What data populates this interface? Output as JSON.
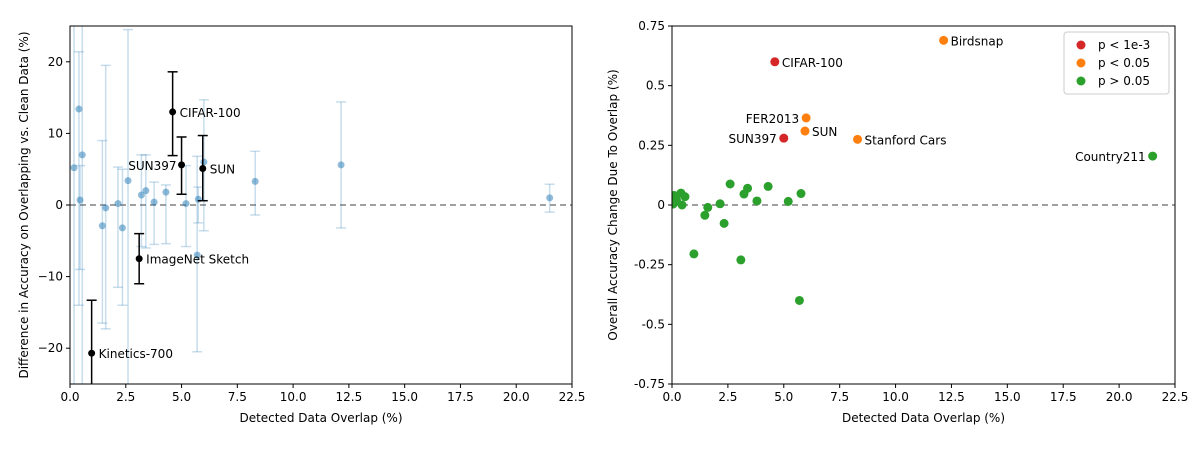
{
  "chart_data": [
    {
      "type": "scatter",
      "xlabel": "Detected Data Overlap (%)",
      "ylabel": "Difference in Accuracy on Overlapping vs. Clean Data (%)",
      "xlim": [
        0,
        22.5
      ],
      "ylim": [
        -25,
        25
      ],
      "xticks": [
        "0.0",
        "2.5",
        "5.0",
        "7.5",
        "10.0",
        "12.5",
        "15.0",
        "17.5",
        "20.0",
        "22.5"
      ],
      "yticks": [
        {
          "v": 20,
          "label": "20"
        },
        {
          "v": 10,
          "label": "10"
        },
        {
          "v": 0,
          "label": "0"
        },
        {
          "v": -10,
          "label": "−10"
        },
        {
          "v": -20,
          "label": "−20"
        }
      ],
      "reference_line_y": 0,
      "color_faded": "#1f77b4",
      "color_highlight": "#000000",
      "points": [
        {
          "x": 0.18,
          "y": 5.2,
          "lo": -30,
          "hi": 35
        },
        {
          "x": 0.4,
          "y": 13.4,
          "lo": -14,
          "hi": 21.4
        },
        {
          "x": 0.45,
          "y": 0.7,
          "lo": -9,
          "hi": 5.5
        },
        {
          "x": 0.55,
          "y": 7.0,
          "lo": -30,
          "hi": 35
        },
        {
          "x": 1.45,
          "y": -2.9,
          "lo": -16.5,
          "hi": 9
        },
        {
          "x": 1.6,
          "y": -0.4,
          "lo": -17.3,
          "hi": 19.5
        },
        {
          "x": 2.15,
          "y": 0.2,
          "lo": -11.5,
          "hi": 5.3
        },
        {
          "x": 2.35,
          "y": -3.2,
          "lo": -14,
          "hi": 5
        },
        {
          "x": 2.6,
          "y": 3.4,
          "lo": -30,
          "hi": 24.5
        },
        {
          "x": 3.2,
          "y": 1.4,
          "lo": -5.8,
          "hi": 7
        },
        {
          "x": 3.4,
          "y": 2.0,
          "lo": -6,
          "hi": 7
        },
        {
          "x": 3.77,
          "y": 0.4,
          "lo": -5.5,
          "hi": 3.2
        },
        {
          "x": 4.3,
          "y": 1.8,
          "lo": -5.4,
          "hi": 2.8
        },
        {
          "x": 5.2,
          "y": 0.2,
          "lo": -5.8,
          "hi": 5.5
        },
        {
          "x": 5.7,
          "y": -7.0,
          "lo": -20.5,
          "hi": 6.8
        },
        {
          "x": 5.75,
          "y": 0.8,
          "lo": -2.5,
          "hi": 2.5
        },
        {
          "x": 6.0,
          "y": 6.0,
          "lo": -3.6,
          "hi": 14.7
        },
        {
          "x": 8.3,
          "y": 3.3,
          "lo": -1.4,
          "hi": 7.5
        },
        {
          "x": 12.15,
          "y": 5.6,
          "lo": -3.2,
          "hi": 14.4
        },
        {
          "x": 21.5,
          "y": 1.0,
          "lo": -1,
          "hi": 2.9
        }
      ],
      "highlighted": [
        {
          "name": "CIFAR-100",
          "x": 4.6,
          "y": 13.0,
          "lo": 6.9,
          "hi": 18.6,
          "anchor": "start"
        },
        {
          "name": "SUN397",
          "x": 5.0,
          "y": 5.6,
          "lo": 1.5,
          "hi": 9.5,
          "anchor": "end"
        },
        {
          "name": "SUN",
          "x": 5.95,
          "y": 5.1,
          "lo": 0.6,
          "hi": 9.7,
          "anchor": "start"
        },
        {
          "name": "ImageNet Sketch",
          "x": 3.1,
          "y": -7.5,
          "lo": -11,
          "hi": -4,
          "anchor": "start"
        },
        {
          "name": "Kinetics-700",
          "x": 0.97,
          "y": -20.7,
          "lo": -30,
          "hi": -13.3,
          "anchor": "start"
        }
      ]
    },
    {
      "type": "scatter",
      "xlabel": "Detected Data Overlap (%)",
      "ylabel": "Overall Accuracy Change Due To Overlap (%)",
      "xlim": [
        0,
        22.5
      ],
      "ylim": [
        -0.75,
        0.75
      ],
      "xticks": [
        "0.0",
        "2.5",
        "5.0",
        "7.5",
        "10.0",
        "12.5",
        "15.0",
        "17.5",
        "20.0",
        "22.5"
      ],
      "yticks": [
        {
          "v": 0.75,
          "label": "0.75"
        },
        {
          "v": 0.5,
          "label": "0.5"
        },
        {
          "v": 0.25,
          "label": "0.25"
        },
        {
          "v": 0,
          "label": "0"
        },
        {
          "v": -0.25,
          "label": "-0.25"
        },
        {
          "v": -0.5,
          "label": "-0.5"
        },
        {
          "v": -0.75,
          "label": "-0.75"
        }
      ],
      "reference_line_y": 0,
      "legend": {
        "placement": "top-right",
        "entries": [
          {
            "label": "p < 1e-3",
            "color": "#d62728"
          },
          {
            "label": "p < 0.05",
            "color": "#ff7f0e"
          },
          {
            "label": "p > 0.05",
            "color": "#2ca02c"
          }
        ]
      },
      "points": [
        {
          "x": 0.05,
          "y": 0.004,
          "g": 2
        },
        {
          "x": 0.1,
          "y": 0.04,
          "g": 2
        },
        {
          "x": 0.2,
          "y": 0.02,
          "g": 2
        },
        {
          "x": 0.4,
          "y": 0.05,
          "g": 2
        },
        {
          "x": 0.45,
          "y": 0.0,
          "g": 2
        },
        {
          "x": 0.58,
          "y": 0.035,
          "g": 2
        },
        {
          "x": 0.98,
          "y": -0.205,
          "g": 2
        },
        {
          "x": 1.47,
          "y": -0.043,
          "g": 2
        },
        {
          "x": 1.6,
          "y": -0.01,
          "g": 2
        },
        {
          "x": 2.15,
          "y": 0.005,
          "g": 2
        },
        {
          "x": 2.33,
          "y": -0.077,
          "g": 2
        },
        {
          "x": 2.6,
          "y": 0.088,
          "g": 2
        },
        {
          "x": 3.08,
          "y": -0.23,
          "g": 2
        },
        {
          "x": 3.22,
          "y": 0.046,
          "g": 2
        },
        {
          "x": 3.38,
          "y": 0.07,
          "g": 2
        },
        {
          "x": 3.8,
          "y": 0.017,
          "g": 2
        },
        {
          "x": 4.3,
          "y": 0.078,
          "g": 2
        },
        {
          "x": 5.2,
          "y": 0.015,
          "g": 2
        },
        {
          "x": 5.7,
          "y": -0.4,
          "g": 2
        },
        {
          "x": 5.77,
          "y": 0.048,
          "g": 2
        },
        {
          "x": 4.6,
          "y": 0.6,
          "g": 0,
          "name": "CIFAR-100",
          "anchor": "start"
        },
        {
          "x": 5.0,
          "y": 0.28,
          "g": 0,
          "name": "SUN397",
          "anchor": "end"
        },
        {
          "x": 6.0,
          "y": 0.365,
          "g": 1,
          "name": "FER2013",
          "anchor": "end"
        },
        {
          "x": 5.95,
          "y": 0.31,
          "g": 1,
          "name": "SUN",
          "anchor": "start"
        },
        {
          "x": 8.3,
          "y": 0.275,
          "g": 1,
          "name": "Stanford Cars",
          "anchor": "start"
        },
        {
          "x": 12.15,
          "y": 0.69,
          "g": 1,
          "name": "Birdsnap",
          "anchor": "start"
        },
        {
          "x": 21.5,
          "y": 0.205,
          "g": 2,
          "name": "Country211",
          "anchor": "end"
        }
      ]
    }
  ]
}
